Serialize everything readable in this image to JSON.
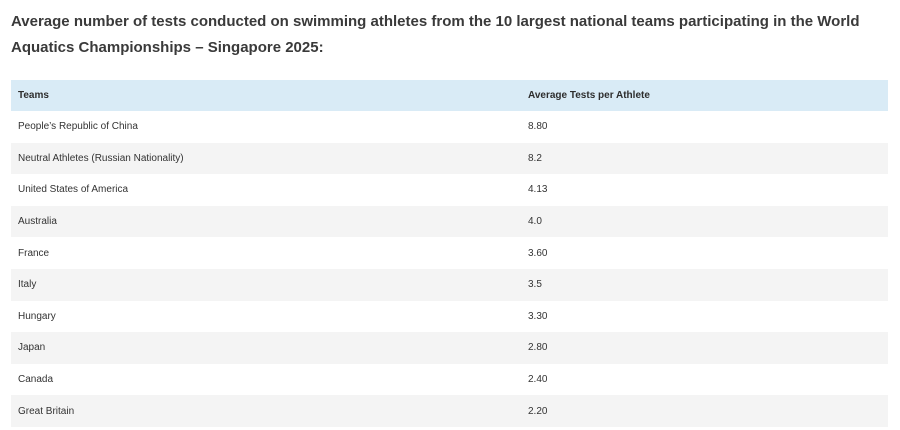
{
  "heading": "Average number of tests conducted on swimming athletes from the 10 largest national teams participating in the World Aquatics Championships – Singapore 2025:",
  "table": {
    "columns": [
      "Teams",
      "Average Tests per Athlete"
    ],
    "rows": [
      {
        "team": "People’s Republic of China",
        "avg": "8.80"
      },
      {
        "team": "Neutral Athletes (Russian Nationality)",
        "avg": "8.2"
      },
      {
        "team": "United States of America",
        "avg": "4.13"
      },
      {
        "team": "Australia",
        "avg": "4.0"
      },
      {
        "team": "France",
        "avg": "3.60"
      },
      {
        "team": "Italy",
        "avg": "3.5"
      },
      {
        "team": "Hungary",
        "avg": "3.30"
      },
      {
        "team": "Japan",
        "avg": "2.80"
      },
      {
        "team": "Canada",
        "avg": "2.40"
      },
      {
        "team": "Great Britain",
        "avg": "2.20"
      }
    ]
  }
}
